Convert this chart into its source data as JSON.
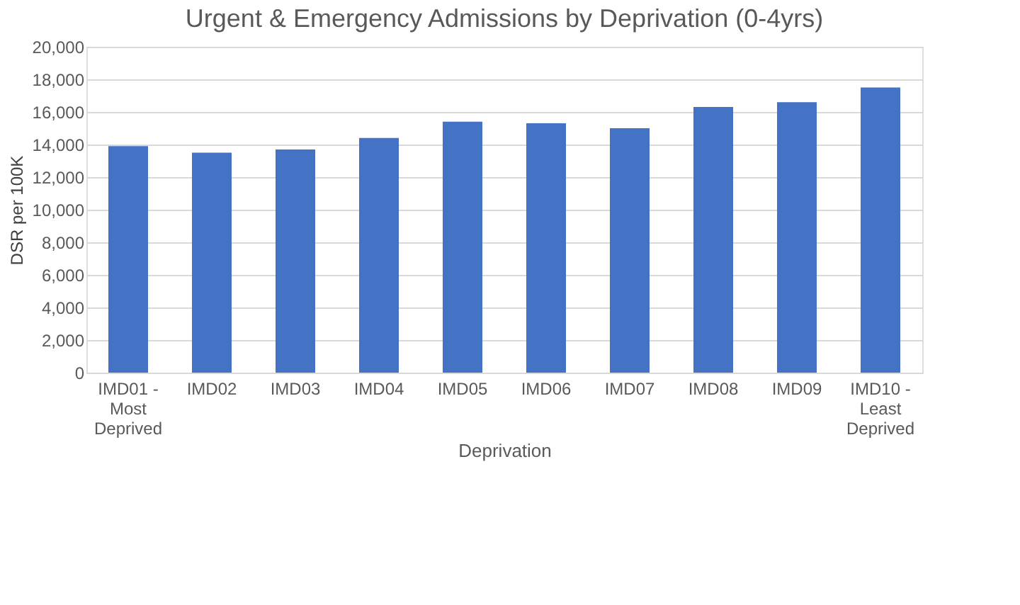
{
  "chart_data": {
    "type": "bar",
    "title": "Urgent & Emergency Admissions by Deprivation (0-4yrs)",
    "xlabel": "Deprivation",
    "ylabel": "DSR per 100K",
    "categories": [
      "IMD01 - Most Deprived",
      "IMD02",
      "IMD03",
      "IMD04",
      "IMD05",
      "IMD06",
      "IMD07",
      "IMD08",
      "IMD09",
      "IMD10 - Least Deprived"
    ],
    "values": [
      13900,
      13500,
      13700,
      14400,
      15400,
      15300,
      15000,
      16300,
      16600,
      17500
    ],
    "color": "#4472c4",
    "ylim": [
      0,
      20000
    ],
    "yticks": [
      {
        "value": 0,
        "label": "0"
      },
      {
        "value": 2000,
        "label": "2,000"
      },
      {
        "value": 4000,
        "label": "4,000"
      },
      {
        "value": 6000,
        "label": "6,000"
      },
      {
        "value": 8000,
        "label": "8,000"
      },
      {
        "value": 10000,
        "label": "10,000"
      },
      {
        "value": 12000,
        "label": "12,000"
      },
      {
        "value": 14000,
        "label": "14,000"
      },
      {
        "value": 16000,
        "label": "16,000"
      },
      {
        "value": 18000,
        "label": "18,000"
      },
      {
        "value": 20000,
        "label": "20,000"
      }
    ],
    "grid": "y"
  }
}
